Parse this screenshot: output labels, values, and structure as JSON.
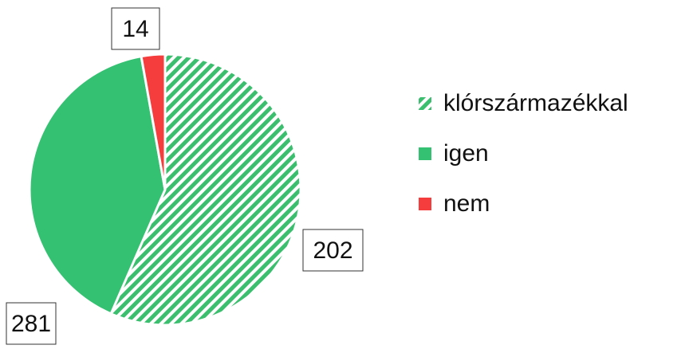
{
  "chart_data": {
    "type": "pie",
    "categories": [
      "klórszármazékkal",
      "igen",
      "nem"
    ],
    "values": [
      281,
      202,
      14
    ],
    "colors": [
      "#3bbf6e",
      "#35c172",
      "#f53d3d"
    ],
    "patterns": [
      "hatch",
      "solid",
      "solid"
    ]
  }
}
